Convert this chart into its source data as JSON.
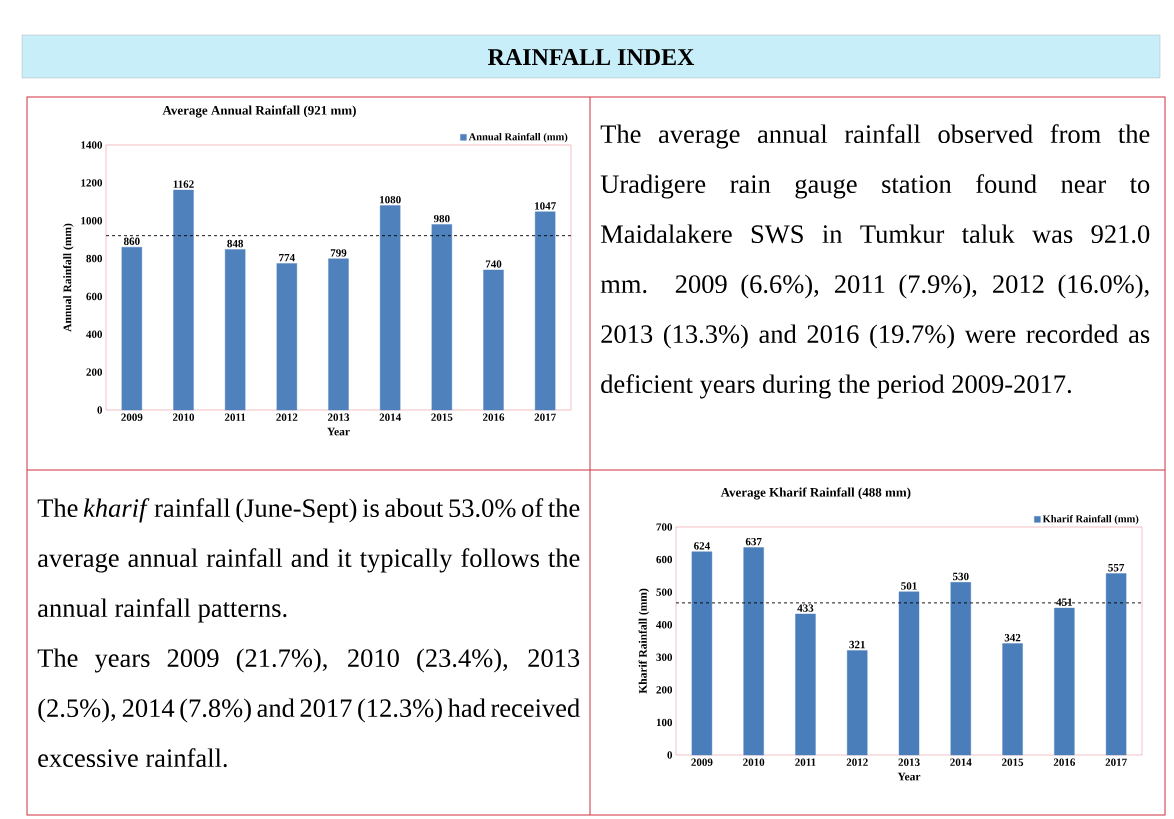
{
  "chart_data": [
    {
      "type": "other",
      "title": "RAINFALL INDEX"
    },
    {
      "type": "bar",
      "title": "Average Annual Rainfall (921 mm)",
      "xlabel": "Year",
      "ylabel": "Annual Rainfall (mm)",
      "categories": [
        "2009",
        "2010",
        "2011",
        "2012",
        "2013",
        "2014",
        "2015",
        "2016",
        "2017"
      ],
      "series": [
        {
          "name": "Annual Rainfall (mm)",
          "color": "#4f81bd",
          "values": [
            860,
            1162,
            848,
            774,
            799,
            1080,
            980,
            740,
            1047
          ]
        }
      ],
      "ylim": [
        0,
        1400
      ],
      "yticks": [
        0,
        200,
        400,
        600,
        800,
        1000,
        1200,
        1400
      ],
      "data_labels": true,
      "legend": "top right",
      "ref_lines": [
        {
          "axis": "y",
          "value": 921,
          "line_style": "dashed",
          "color": "#000000"
        }
      ]
    },
    {
      "type": "other",
      "annotations": [
        "The average annual rainfall observed from the Uradigere rain gauge station found near to Maidalakere SWS in Tumkur taluk was 921.0 mm. 2009 (6.6%), 2011 (7.9%), 2012 (16.0%), 2013 (13.3%) and 2016 (19.7%) were recorded as deficient years during the period 2009-2017."
      ]
    },
    {
      "type": "other",
      "annotations": [
        "The *kharif* rainfall (June-Sept) is about 53.0% of the average annual rainfall and it typically follows the annual rainfall patterns.",
        "The years 2009 (21.7%), 2010 (23.4%), 2013 (2.5%), 2014 (7.8%) and 2017 (12.3%) had received excessive rainfall."
      ]
    },
    {
      "type": "bar",
      "title": "Average Kharif Rainfall  (488 mm)",
      "xlabel": "Year",
      "ylabel": "Kharif Rainfall (mm)",
      "categories": [
        "2009",
        "2010",
        "2011",
        "2012",
        "2013",
        "2014",
        "2015",
        "2016",
        "2017"
      ],
      "series": [
        {
          "name": "Kharif Rainfall (mm)",
          "color": "#4a7ebb",
          "values": [
            624,
            637,
            433,
            321,
            501,
            530,
            342,
            451,
            557
          ]
        }
      ],
      "ylim": [
        0,
        700
      ],
      "yticks": [
        0,
        100,
        200,
        300,
        400,
        500,
        600,
        700
      ],
      "data_labels": true,
      "legend": "top right",
      "ref_lines": [
        {
          "axis": "y",
          "value": 467,
          "line_style": "dashed",
          "color": "#000000"
        }
      ]
    }
  ]
}
